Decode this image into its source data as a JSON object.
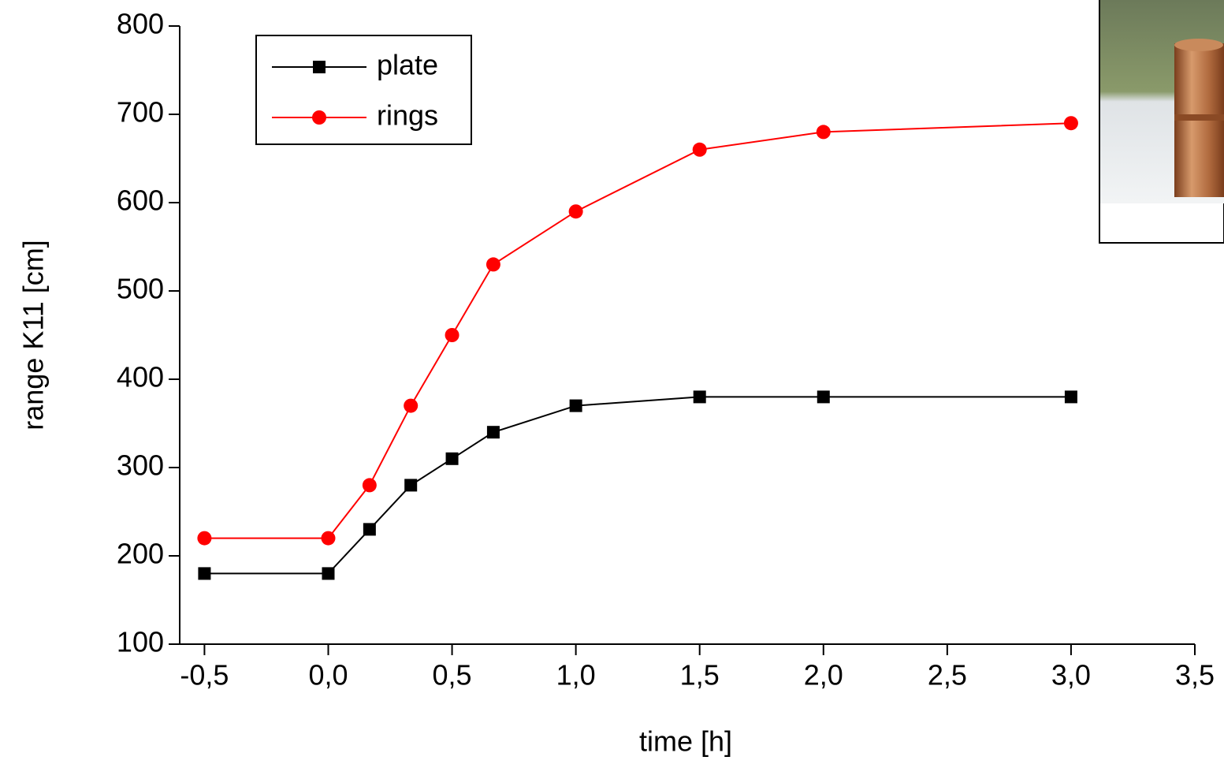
{
  "chart_data": {
    "type": "line",
    "x_label": "time [h]",
    "y_label": "range K11 [cm]",
    "x": [
      -0.5,
      0,
      0.1667,
      0.3333,
      0.5,
      0.6667,
      1,
      1.5,
      2,
      3
    ],
    "series": [
      {
        "name": "plate",
        "color": "#000000",
        "marker": "square",
        "values": [
          180,
          180,
          230,
          280,
          310,
          340,
          370,
          380,
          380,
          380
        ]
      },
      {
        "name": "rings",
        "color": "#ff0000",
        "marker": "circle",
        "values": [
          220,
          220,
          280,
          370,
          450,
          530,
          590,
          660,
          680,
          690
        ]
      }
    ],
    "xlim": [
      -0.6,
      3.5
    ],
    "xticks": [
      {
        "value": -0.5,
        "label": "-0,5"
      },
      {
        "value": 0,
        "label": "0,0"
      },
      {
        "value": 0.5,
        "label": "0,5"
      },
      {
        "value": 1,
        "label": "1,0"
      },
      {
        "value": 1.5,
        "label": "1,5"
      },
      {
        "value": 2,
        "label": "2,0"
      },
      {
        "value": 2.5,
        "label": "2,5"
      },
      {
        "value": 3,
        "label": "3,0"
      },
      {
        "value": 3.5,
        "label": "3,5"
      }
    ],
    "ylim": [
      100,
      800
    ],
    "yticks": [
      100,
      200,
      300,
      400,
      500,
      600,
      700,
      800
    ],
    "grid": false,
    "legend": "top-left"
  }
}
